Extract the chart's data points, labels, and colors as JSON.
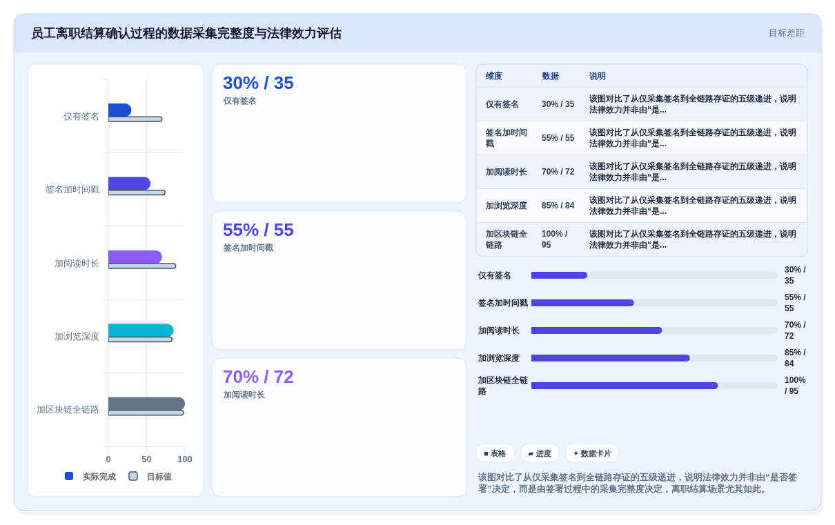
{
  "chart_data": [
    {
      "type": "bar",
      "title": "员工离职结算确认过程的数据采集完整度与法律效力评估",
      "orientation": "horizontal",
      "categories": [
        "仅有签名",
        "签名加时间戳",
        "加阅读时长",
        "加浏览深度",
        "加区块链全链路"
      ],
      "series": [
        {
          "name": "实际完成",
          "colors": [
            "#1d4ed8",
            "#4f46e5",
            "#8b5cf6",
            "#06b6d4",
            "#64748b"
          ],
          "values": [
            30,
            55,
            70,
            85,
            100
          ]
        },
        {
          "name": "目标值",
          "color": "#cbd5e1",
          "values": [
            70,
            74,
            88,
            83,
            98
          ]
        }
      ],
      "xlim": [
        0,
        100
      ],
      "xticks": [
        0,
        50,
        100
      ],
      "grid": true,
      "legend": "bottom"
    },
    {
      "type": "other",
      "categories": [
        "仅有签名",
        "签名加时间戳",
        "加阅读时长"
      ],
      "value_labels": [
        "30% / 35",
        "55% / 55",
        "70% / 72"
      ]
    },
    {
      "type": "other",
      "annotations": [
        "目标差距"
      ],
      "categories": [
        "维度",
        "数据",
        "说明"
      ],
      "cell_labels": [
        [
          "仅有签名",
          "30% / 35",
          "该图对比了从仅采集签名到全链路存证的五级递进，说明法律效力并非由“是..."
        ],
        [
          "签名加时间戳",
          "55% / 55",
          "该图对比了从仅采集签名到全链路存证的五级递进，说明法律效力并非由“是..."
        ],
        [
          "加阅读时长",
          "70% / 72",
          "该图对比了从仅采集签名到全链路存证的五级递进，说明法律效力并非由“是..."
        ],
        [
          "加浏览深度",
          "85% / 84",
          "该图对比了从仅采集签名到全链路存证的五级递进，说明法律效力并非由“是..."
        ],
        [
          "加区块链全链路",
          "100% / 95",
          "该图对比了从仅采集签名到全链路存证的五级递进，说明法律效力并非由“是..."
        ]
      ]
    },
    {
      "type": "bar",
      "orientation": "horizontal",
      "categories": [
        "仅有签名",
        "签名加时间戳",
        "加阅读时长",
        "加浏览深度",
        "加区块链全链路"
      ],
      "values": [
        30,
        55,
        70,
        85,
        100
      ],
      "value_labels": [
        "30% / 35",
        "55% / 55",
        "70% / 72",
        "85% / 84",
        "100% / 95"
      ],
      "color": "#4f46e5",
      "xlim": [
        0,
        132
      ],
      "tick_labels": "y"
    },
    {
      "type": "other",
      "categories": [
        "■ 表格",
        "▰ 进度",
        "✦ 数据卡片"
      ],
      "annotations": [
        "该图对比了从仅采集签名到全链路存证的五级递进，说明法律效力并非由“是否签署”决定，而是由签署过程中的采集完整度决定，离职结算场景尤其如此。"
      ]
    }
  ]
}
